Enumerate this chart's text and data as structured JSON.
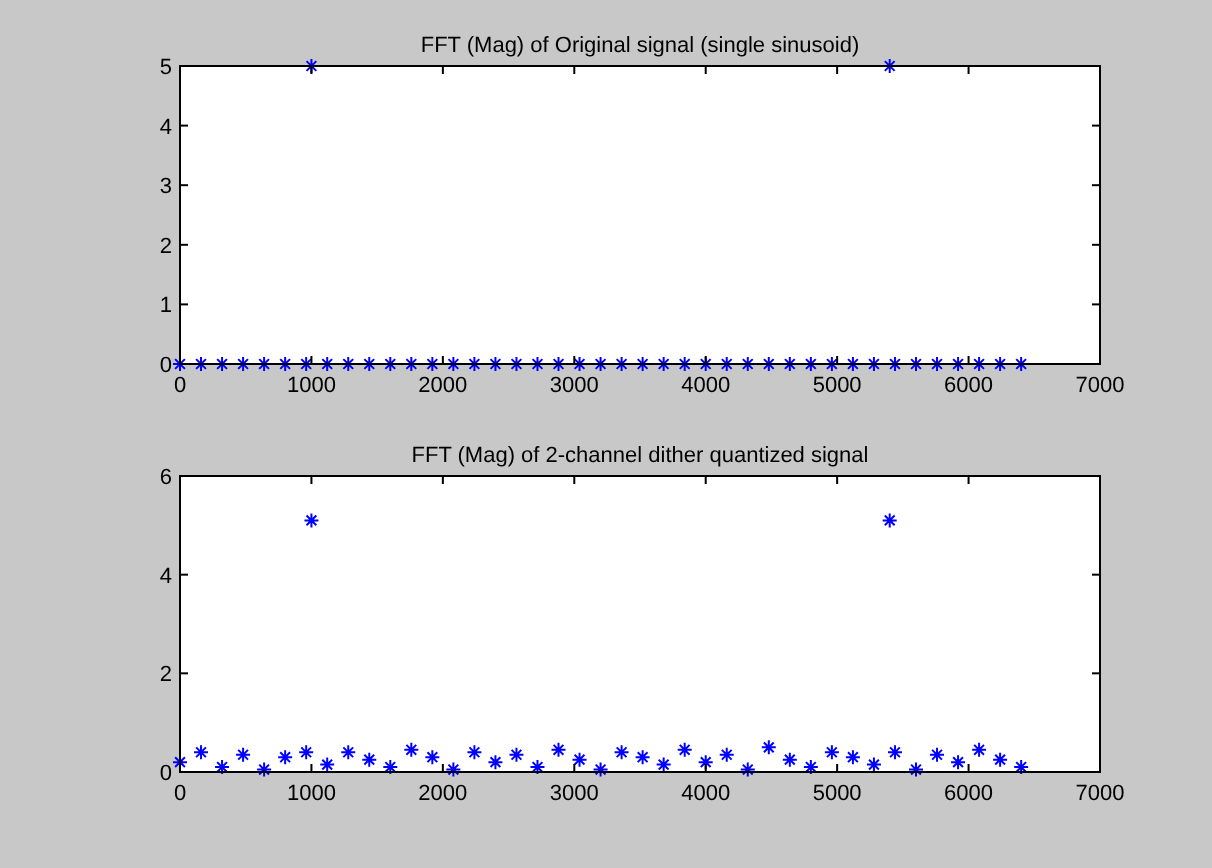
{
  "chart_data": [
    {
      "type": "scatter",
      "title": "FFT (Mag) of Original signal (single sinusoid)",
      "x": [
        0,
        160,
        320,
        480,
        640,
        800,
        960,
        1000,
        1120,
        1280,
        1440,
        1600,
        1760,
        1920,
        2080,
        2240,
        2400,
        2560,
        2720,
        2880,
        3040,
        3200,
        3360,
        3520,
        3680,
        3840,
        4000,
        4160,
        4320,
        4480,
        4640,
        4800,
        4960,
        5120,
        5280,
        5400,
        5440,
        5600,
        5760,
        5920,
        6080,
        6240,
        6400
      ],
      "series": [
        {
          "color": "#0000ff",
          "values": [
            0,
            0,
            0,
            0,
            0,
            0,
            0,
            5,
            0,
            0,
            0,
            0,
            0,
            0,
            0,
            0,
            0,
            0,
            0,
            0,
            0,
            0,
            0,
            0,
            0,
            0,
            0,
            0,
            0,
            0,
            0,
            0,
            0,
            0,
            0,
            5,
            0,
            0,
            0,
            0,
            0,
            0,
            0
          ]
        }
      ],
      "xlim": [
        0,
        7000
      ],
      "xticks": [
        0,
        1000,
        2000,
        3000,
        4000,
        5000,
        6000,
        7000
      ],
      "ylim": [
        0,
        5
      ],
      "yticks": [
        0,
        1,
        2,
        3,
        4,
        5
      ],
      "marker": "cross",
      "grid": false
    },
    {
      "type": "scatter",
      "title": "FFT (Mag) of 2-channel dither quantized signal",
      "x": [
        0,
        160,
        320,
        480,
        640,
        800,
        960,
        1000,
        1120,
        1280,
        1440,
        1600,
        1760,
        1920,
        2080,
        2240,
        2400,
        2560,
        2720,
        2880,
        3040,
        3200,
        3360,
        3520,
        3680,
        3840,
        4000,
        4160,
        4320,
        4480,
        4640,
        4800,
        4960,
        5120,
        5280,
        5400,
        5440,
        5600,
        5760,
        5920,
        6080,
        6240,
        6400
      ],
      "series": [
        {
          "color": "#0000ff",
          "values": [
            0.2,
            0.4,
            0.1,
            0.35,
            0.05,
            0.3,
            0.4,
            5.1,
            0.15,
            0.4,
            0.25,
            0.1,
            0.45,
            0.3,
            0.05,
            0.4,
            0.2,
            0.35,
            0.1,
            0.45,
            0.25,
            0.05,
            0.4,
            0.3,
            0.15,
            0.45,
            0.2,
            0.35,
            0.05,
            0.5,
            0.25,
            0.1,
            0.4,
            0.3,
            0.15,
            5.1,
            0.4,
            0.05,
            0.35,
            0.2,
            0.45,
            0.25,
            0.1
          ]
        }
      ],
      "xlim": [
        0,
        7000
      ],
      "xticks": [
        0,
        1000,
        2000,
        3000,
        4000,
        5000,
        6000,
        7000
      ],
      "ylim": [
        0,
        6
      ],
      "yticks": [
        0,
        2,
        4,
        6
      ],
      "marker": "cross",
      "grid": false
    }
  ]
}
